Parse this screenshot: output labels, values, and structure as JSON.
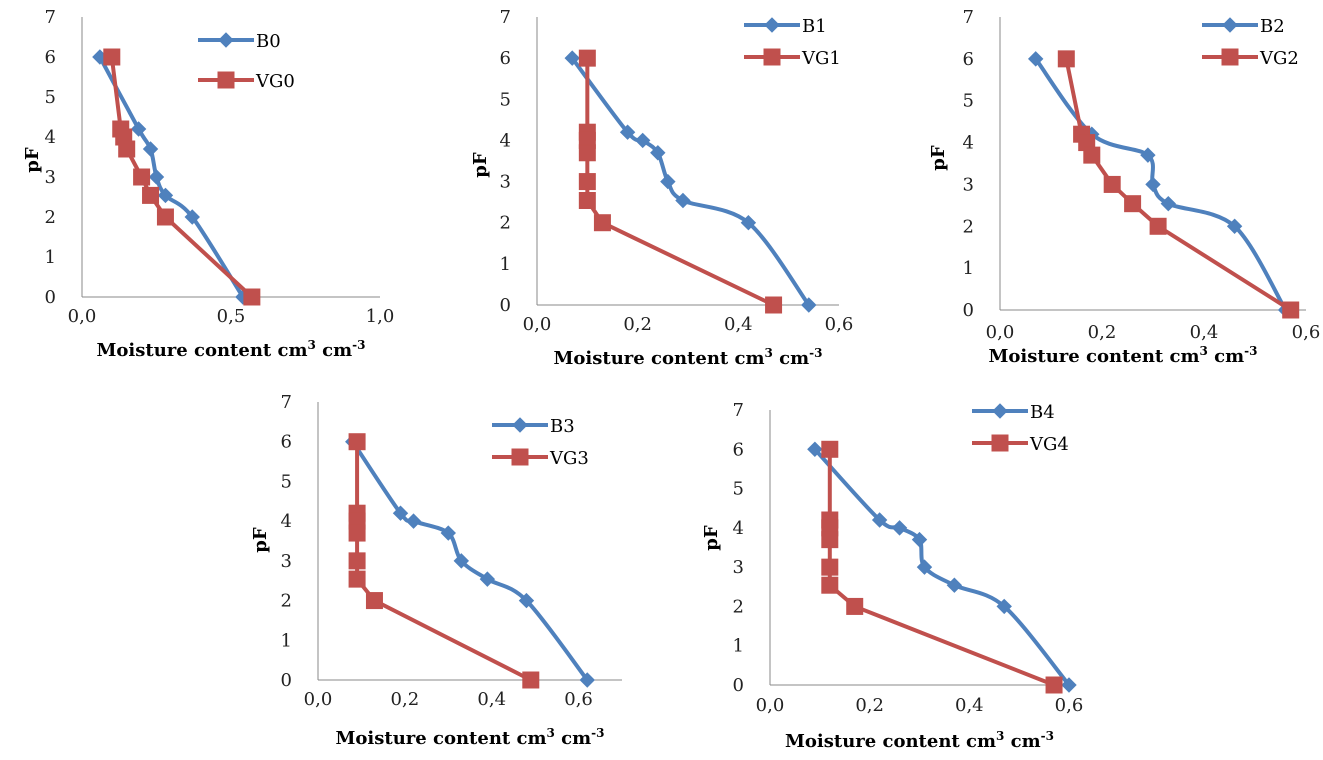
{
  "chart_data": [
    {
      "type": "line",
      "xlabel": "Moisture content cm³ cm⁻³",
      "ylabel": "pF",
      "xlim": [
        0,
        1
      ],
      "xticks": [
        "0,0",
        "0,5",
        "1,0"
      ],
      "ylim": [
        0,
        7
      ],
      "yticks": [
        "0",
        "1",
        "2",
        "3",
        "4",
        "5",
        "6",
        "7"
      ],
      "grid": false,
      "legend": "top-right",
      "series": [
        {
          "name": "B0",
          "color": "#4f81bd",
          "marker": "diamond",
          "x": [
            0.06,
            0.19,
            0.23,
            0.25,
            0.28,
            0.37,
            0.54
          ],
          "y": [
            6,
            4.2,
            3.7,
            3,
            2.54,
            2,
            0
          ]
        },
        {
          "name": "VG0",
          "color": "#c0504d",
          "marker": "square",
          "x": [
            0.1,
            0.13,
            0.14,
            0.15,
            0.2,
            0.23,
            0.28,
            0.57
          ],
          "y": [
            6,
            4.2,
            4,
            3.7,
            3,
            2.54,
            2,
            0
          ]
        }
      ]
    },
    {
      "type": "line",
      "xlabel": "Moisture content cm³ cm⁻³",
      "ylabel": "pF",
      "xlim": [
        0,
        0.6
      ],
      "xticks": [
        "0,0",
        "0,2",
        "0,4",
        "0,6"
      ],
      "ylim": [
        0,
        7
      ],
      "yticks": [
        "0",
        "1",
        "2",
        "3",
        "4",
        "5",
        "6",
        "7"
      ],
      "grid": false,
      "legend": "top-right",
      "series": [
        {
          "name": "B1",
          "color": "#4f81bd",
          "marker": "diamond",
          "x": [
            0.07,
            0.18,
            0.21,
            0.24,
            0.26,
            0.29,
            0.42,
            0.54
          ],
          "y": [
            6,
            4.2,
            4,
            3.7,
            3,
            2.54,
            2,
            0
          ]
        },
        {
          "name": "VG1",
          "color": "#c0504d",
          "marker": "square",
          "x": [
            0.1,
            0.1,
            0.1,
            0.1,
            0.1,
            0.1,
            0.13,
            0.47
          ],
          "y": [
            6,
            4.2,
            4,
            3.7,
            3,
            2.54,
            2,
            0
          ]
        }
      ]
    },
    {
      "type": "line",
      "xlabel": "Moisture content cm³ cm⁻³",
      "ylabel": "pF",
      "xlim": [
        0,
        0.6
      ],
      "xticks": [
        "0,0",
        "0,2",
        "0,4",
        "0,6"
      ],
      "ylim": [
        0,
        7
      ],
      "yticks": [
        "0",
        "1",
        "2",
        "3",
        "4",
        "5",
        "6",
        "7"
      ],
      "grid": false,
      "legend": "top-right",
      "series": [
        {
          "name": "B2",
          "color": "#4f81bd",
          "marker": "diamond",
          "x": [
            0.07,
            0.18,
            0.29,
            0.3,
            0.33,
            0.46,
            0.56
          ],
          "y": [
            6,
            4.2,
            3.7,
            3,
            2.54,
            2,
            0
          ]
        },
        {
          "name": "VG2",
          "color": "#c0504d",
          "marker": "square",
          "x": [
            0.13,
            0.16,
            0.17,
            0.18,
            0.22,
            0.26,
            0.31,
            0.57
          ],
          "y": [
            6,
            4.2,
            4,
            3.7,
            3,
            2.54,
            2,
            0
          ]
        }
      ]
    },
    {
      "type": "line",
      "xlabel": "Moisture content cm³ cm⁻³",
      "ylabel": "pF",
      "xlim": [
        0,
        0.7
      ],
      "xticks": [
        "0,0",
        "0,2",
        "0,4",
        "0,6"
      ],
      "ylim": [
        0,
        7
      ],
      "yticks": [
        "0",
        "1",
        "2",
        "3",
        "4",
        "5",
        "6",
        "7"
      ],
      "grid": false,
      "legend": "top-right",
      "series": [
        {
          "name": "B3",
          "color": "#4f81bd",
          "marker": "diamond",
          "x": [
            0.08,
            0.19,
            0.22,
            0.3,
            0.33,
            0.39,
            0.48,
            0.62
          ],
          "y": [
            6,
            4.2,
            4,
            3.7,
            3,
            2.54,
            2,
            0
          ]
        },
        {
          "name": "VG3",
          "color": "#c0504d",
          "marker": "square",
          "x": [
            0.09,
            0.09,
            0.09,
            0.09,
            0.09,
            0.09,
            0.13,
            0.49
          ],
          "y": [
            6,
            4.2,
            4,
            3.7,
            3,
            2.54,
            2,
            0
          ]
        }
      ]
    },
    {
      "type": "line",
      "xlabel": "Moisture content cm³ cm⁻³",
      "ylabel": "pF",
      "xlim": [
        0,
        0.6
      ],
      "xticks": [
        "0,0",
        "0,2",
        "0,4",
        "0,6"
      ],
      "ylim": [
        0,
        7
      ],
      "yticks": [
        "0",
        "1",
        "2",
        "3",
        "4",
        "5",
        "6",
        "7"
      ],
      "grid": false,
      "legend": "top-right",
      "series": [
        {
          "name": "B4",
          "color": "#4f81bd",
          "marker": "diamond",
          "x": [
            0.09,
            0.22,
            0.26,
            0.3,
            0.31,
            0.37,
            0.47,
            0.6
          ],
          "y": [
            6,
            4.2,
            4,
            3.7,
            3,
            2.54,
            2,
            0
          ]
        },
        {
          "name": "VG4",
          "color": "#c0504d",
          "marker": "square",
          "x": [
            0.12,
            0.12,
            0.12,
            0.12,
            0.12,
            0.12,
            0.17,
            0.57
          ],
          "y": [
            6,
            4.2,
            4,
            3.7,
            3,
            2.54,
            2,
            0
          ]
        }
      ]
    }
  ]
}
